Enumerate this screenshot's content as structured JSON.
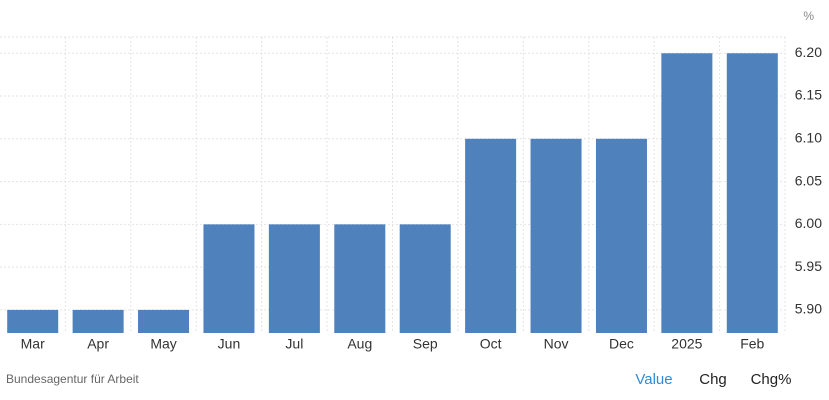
{
  "chart_data": {
    "type": "bar",
    "unit": "%",
    "categories": [
      "Mar",
      "Apr",
      "May",
      "Jun",
      "Jul",
      "Aug",
      "Sep",
      "Oct",
      "Nov",
      "Dec",
      "2025",
      "Feb"
    ],
    "values": [
      5.9,
      5.9,
      5.9,
      6.0,
      6.0,
      6.0,
      6.0,
      6.1,
      6.1,
      6.1,
      6.2,
      6.2
    ],
    "color": "#4f81bd",
    "ylim": [
      5.873,
      6.219
    ],
    "yticks": [
      {
        "value": 5.9,
        "label": "5.90"
      },
      {
        "value": 5.95,
        "label": "5.95"
      },
      {
        "value": 6.0,
        "label": "6.00"
      },
      {
        "value": 6.05,
        "label": "6.05"
      },
      {
        "value": 6.1,
        "label": "6.10"
      },
      {
        "value": 6.15,
        "label": "6.15"
      },
      {
        "value": 6.2,
        "label": "6.20"
      }
    ],
    "grid": true
  },
  "ui": {
    "source": "Bundesagentur für Arbeit",
    "buttons": [
      "Value",
      "Chg",
      "Chg%"
    ]
  }
}
